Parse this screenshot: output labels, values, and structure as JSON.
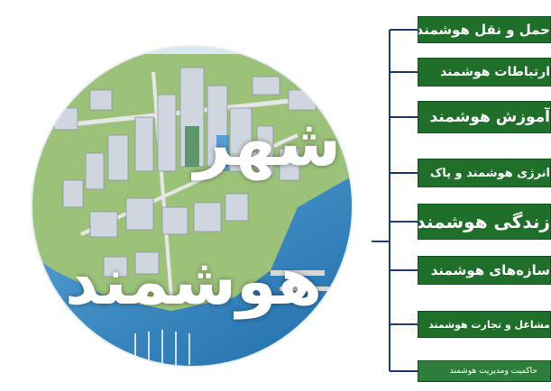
{
  "title": {
    "line1": "شهر",
    "line2": "هوشمند"
  },
  "branches": [
    "حمل و نقل هوشمند",
    "ارتباطات هوشمند",
    "آموزش هوشمند",
    "انرژی هوشمند و پاک",
    "زندگی هوشمند",
    "سازه‌های هوشمند",
    "مشاغل و تجارت هوشمند",
    "حاکمیت ومدیریت هوشمند"
  ],
  "colors": {
    "box": "#1f6e2a",
    "box_last": "#2e7d3a",
    "connector": "#1e3a6e",
    "water": "#2f86c6",
    "land": "#8fb86a"
  }
}
